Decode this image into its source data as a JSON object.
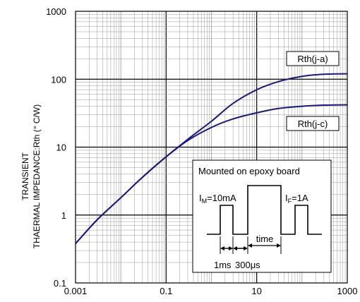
{
  "chart_data": {
    "type": "line",
    "title": "",
    "xlabel": "",
    "ylabel_lines": [
      "TRANSIENT",
      "THAERMAL IMPEDANCE:Rth (° C/W)"
    ],
    "xscale": "log",
    "yscale": "log",
    "xlim": [
      0.001,
      1000
    ],
    "ylim": [
      0.1,
      1000
    ],
    "x_ticks": [
      {
        "value": 0.001,
        "label": "0.001"
      },
      {
        "value": 0.1,
        "label": "0.1"
      },
      {
        "value": 10,
        "label": "10"
      },
      {
        "value": 1000,
        "label": "1000"
      }
    ],
    "y_ticks": [
      {
        "value": 0.1,
        "label": "0.1"
      },
      {
        "value": 1,
        "label": "1"
      },
      {
        "value": 10,
        "label": "10"
      },
      {
        "value": 100,
        "label": "100"
      },
      {
        "value": 1000,
        "label": "1000"
      }
    ],
    "grid": true,
    "series": [
      {
        "name": "Rth(j-a)",
        "color": "#1a1a7a",
        "points": [
          [
            0.001,
            0.38
          ],
          [
            0.003,
            0.85
          ],
          [
            0.01,
            1.8
          ],
          [
            0.03,
            3.6
          ],
          [
            0.1,
            7.2
          ],
          [
            0.3,
            13
          ],
          [
            1,
            24
          ],
          [
            3,
            44
          ],
          [
            10,
            70
          ],
          [
            30,
            92
          ],
          [
            100,
            110
          ],
          [
            300,
            118
          ],
          [
            1000,
            120
          ]
        ]
      },
      {
        "name": "Rth(j-c)",
        "color": "#1a1a7a",
        "points": [
          [
            0.001,
            0.38
          ],
          [
            0.003,
            0.85
          ],
          [
            0.01,
            1.8
          ],
          [
            0.03,
            3.6
          ],
          [
            0.1,
            7.2
          ],
          [
            0.3,
            12.5
          ],
          [
            1,
            19.5
          ],
          [
            3,
            26
          ],
          [
            10,
            32
          ],
          [
            30,
            37
          ],
          [
            100,
            40
          ],
          [
            300,
            41.5
          ],
          [
            1000,
            42
          ]
        ]
      }
    ],
    "inset": {
      "title": "Mounted on epoxy board",
      "im_main": "I",
      "im_sub": "M",
      "im_value": "=10mA",
      "if_main": "I",
      "if_sub": "F",
      "if_value": "=1A",
      "time_label": "time",
      "pulse_width_label": "1ms",
      "gap_label": "300μs"
    }
  }
}
